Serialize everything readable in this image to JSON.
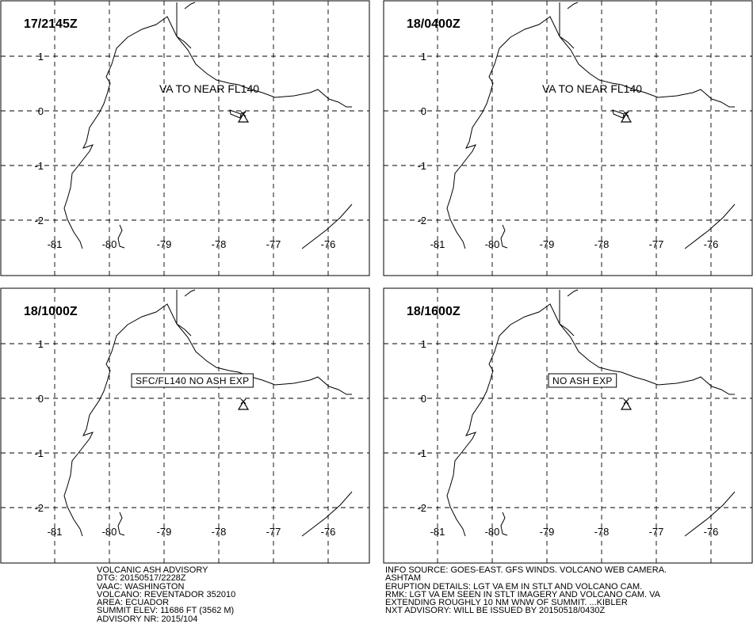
{
  "panels": [
    {
      "label": "17/2145Z",
      "annotation": "VA TO NEAR FL140"
    },
    {
      "label": "18/0400Z",
      "annotation": "VA TO NEAR FL140"
    },
    {
      "label": "18/1000Z",
      "annotation": "SFC/FL140 NO ASH EXP"
    },
    {
      "label": "18/1600Z",
      "annotation": "NO ASH EXP"
    }
  ],
  "lat_ticks": [
    1,
    0,
    -1,
    -2
  ],
  "lon_ticks": [
    -81,
    -80,
    -79,
    -78,
    -77,
    -76
  ],
  "footer_left": [
    "VOLCANIC ASH ADVISORY",
    "DTG: 20150517/2228Z",
    "VAAC: WASHINGTON",
    "VOLCANO: REVENTADOR 352010",
    "AREA: ECUADOR",
    "SUMMIT ELEV: 11686 FT (3562 M)",
    "ADVISORY NR: 2015/104"
  ],
  "footer_right": [
    "INFO SOURCE: GOES-EAST. GFS WINDS. VOLCANO WEB CAMERA.",
    "ASHTAM",
    "ERUPTION DETAILS: LGT VA EM IN STLT AND VOLCANO CAM.",
    "RMK: LGT VA EM SEEN IN STLT IMAGERY AND VOLCANO CAM. VA",
    "EXTENDING ROUGHLY 10 NM WNW OF SUMMIT. ...KIBLER",
    "NXT ADVISORY: WILL BE ISSUED BY 20150518/0430Z"
  ]
}
